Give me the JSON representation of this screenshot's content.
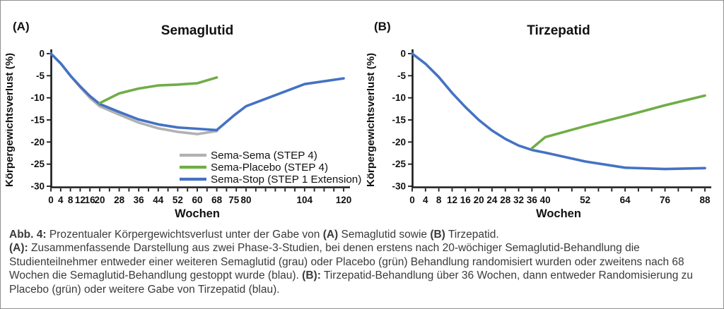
{
  "chart_data": [
    {
      "type": "line",
      "panel_label": "(A)",
      "title": "Semaglutid",
      "xlabel": "Wochen",
      "ylabel": "Körpergewichtsverlust (%)",
      "x_max": 120,
      "ylim": [
        -30,
        0
      ],
      "grid": false,
      "y_ticks": [
        0,
        -5,
        -10,
        -15,
        -20,
        -25,
        -30
      ],
      "x_tick_step": 4,
      "x_tick_labels": [
        0,
        4,
        8,
        12,
        16,
        20,
        28,
        36,
        44,
        52,
        60,
        68,
        75,
        80,
        104,
        120
      ],
      "legend": {
        "position": "inside-bottom-right",
        "entries": [
          {
            "label": "Sema-Sema (STEP 4)",
            "color": "#b1b1b1"
          },
          {
            "label": "Sema-Placebo (STEP 4)",
            "color": "#70ad47"
          },
          {
            "label": "Sema-Stop (STEP 1 Extension)",
            "color": "#4472c4"
          }
        ]
      },
      "series": [
        {
          "name": "Sema-Sema (STEP 4)",
          "color": "#b1b1b1",
          "points": [
            [
              0,
              0
            ],
            [
              4,
              -2.2
            ],
            [
              8,
              -5
            ],
            [
              12,
              -7.6
            ],
            [
              16,
              -10
            ],
            [
              20,
              -11.9
            ],
            [
              28,
              -13.8
            ],
            [
              36,
              -15.6
            ],
            [
              44,
              -16.9
            ],
            [
              52,
              -17.7
            ],
            [
              60,
              -18.2
            ],
            [
              68,
              -17.5
            ]
          ]
        },
        {
          "name": "Sema-Stop (STEP 1 Extension)",
          "color": "#4472c4",
          "points": [
            [
              0,
              0
            ],
            [
              4,
              -2.2
            ],
            [
              8,
              -5
            ],
            [
              12,
              -7.4
            ],
            [
              16,
              -9.6
            ],
            [
              20,
              -11.4
            ],
            [
              28,
              -13.2
            ],
            [
              36,
              -14.9
            ],
            [
              44,
              -16
            ],
            [
              52,
              -16.7
            ],
            [
              60,
              -17
            ],
            [
              68,
              -17.3
            ],
            [
              75,
              -14
            ],
            [
              80,
              -11.9
            ],
            [
              104,
              -6.9
            ],
            [
              120,
              -5.6
            ]
          ]
        },
        {
          "name": "Sema-Placebo (STEP 4)",
          "color": "#70ad47",
          "points": [
            [
              20,
              -11.2
            ],
            [
              28,
              -9
            ],
            [
              36,
              -7.9
            ],
            [
              44,
              -7.2
            ],
            [
              52,
              -7
            ],
            [
              60,
              -6.7
            ],
            [
              68,
              -5.4
            ]
          ]
        }
      ]
    },
    {
      "type": "line",
      "panel_label": "(B)",
      "title": "Tirzepatid",
      "xlabel": "Wochen",
      "ylabel": "Körpergewichtsverlust (%)",
      "x_max": 88,
      "ylim": [
        -30,
        0
      ],
      "grid": false,
      "y_ticks": [
        0,
        -5,
        -10,
        -15,
        -20,
        -25,
        -30
      ],
      "x_tick_step": 4,
      "x_tick_labels": [
        0,
        4,
        8,
        12,
        16,
        20,
        24,
        28,
        32,
        36,
        40,
        52,
        64,
        76,
        88
      ],
      "legend": null,
      "series": [
        {
          "name": "Tirzepatid",
          "color": "#4472c4",
          "points": [
            [
              0,
              0
            ],
            [
              4,
              -2.3
            ],
            [
              8,
              -5.3
            ],
            [
              12,
              -8.9
            ],
            [
              16,
              -12.1
            ],
            [
              20,
              -15
            ],
            [
              24,
              -17.4
            ],
            [
              28,
              -19.3
            ],
            [
              32,
              -20.8
            ],
            [
              36,
              -21.8
            ],
            [
              40,
              -22.4
            ],
            [
              52,
              -24.4
            ],
            [
              64,
              -25.8
            ],
            [
              76,
              -26.1
            ],
            [
              88,
              -25.9
            ]
          ]
        },
        {
          "name": "Placebo",
          "color": "#70ad47",
          "points": [
            [
              36,
              -21.4
            ],
            [
              40,
              -18.9
            ],
            [
              52,
              -16.4
            ],
            [
              64,
              -14.1
            ],
            [
              76,
              -11.7
            ],
            [
              88,
              -9.5
            ]
          ]
        }
      ]
    }
  ],
  "caption": {
    "segments": [
      {
        "text": "Abb. 4:",
        "bold": true
      },
      {
        "text": " Prozentualer Körpergewichtsverlust unter der Gabe von ",
        "bold": false
      },
      {
        "text": "(A)",
        "bold": true
      },
      {
        "text": " Semaglutid sowie ",
        "bold": false
      },
      {
        "text": "(B)",
        "bold": true
      },
      {
        "text": " Tirzepatid.",
        "bold": false
      },
      {
        "br": true
      },
      {
        "text": "(A):",
        "bold": true
      },
      {
        "text": " Zusammenfassende Darstellung aus zwei Phase-3-Studien, bei denen erstens nach 20-wöchiger Semaglutid-Behandlung die Studienteilnehmer entweder einer weiteren Semaglutid (grau) oder Placebo (grün) Behandlung randomisiert wurden oder zweitens nach 68 Wochen die Semaglutid-Behandlung gestoppt wurde (blau). ",
        "bold": false
      },
      {
        "text": "(B):",
        "bold": true
      },
      {
        "text": " Tirzepatid-Behandlung über 36 Wochen, dann entweder Randomisierung zu Placebo (grün) oder weitere Gabe von Tirzepatid (blau).",
        "bold": false
      }
    ]
  }
}
